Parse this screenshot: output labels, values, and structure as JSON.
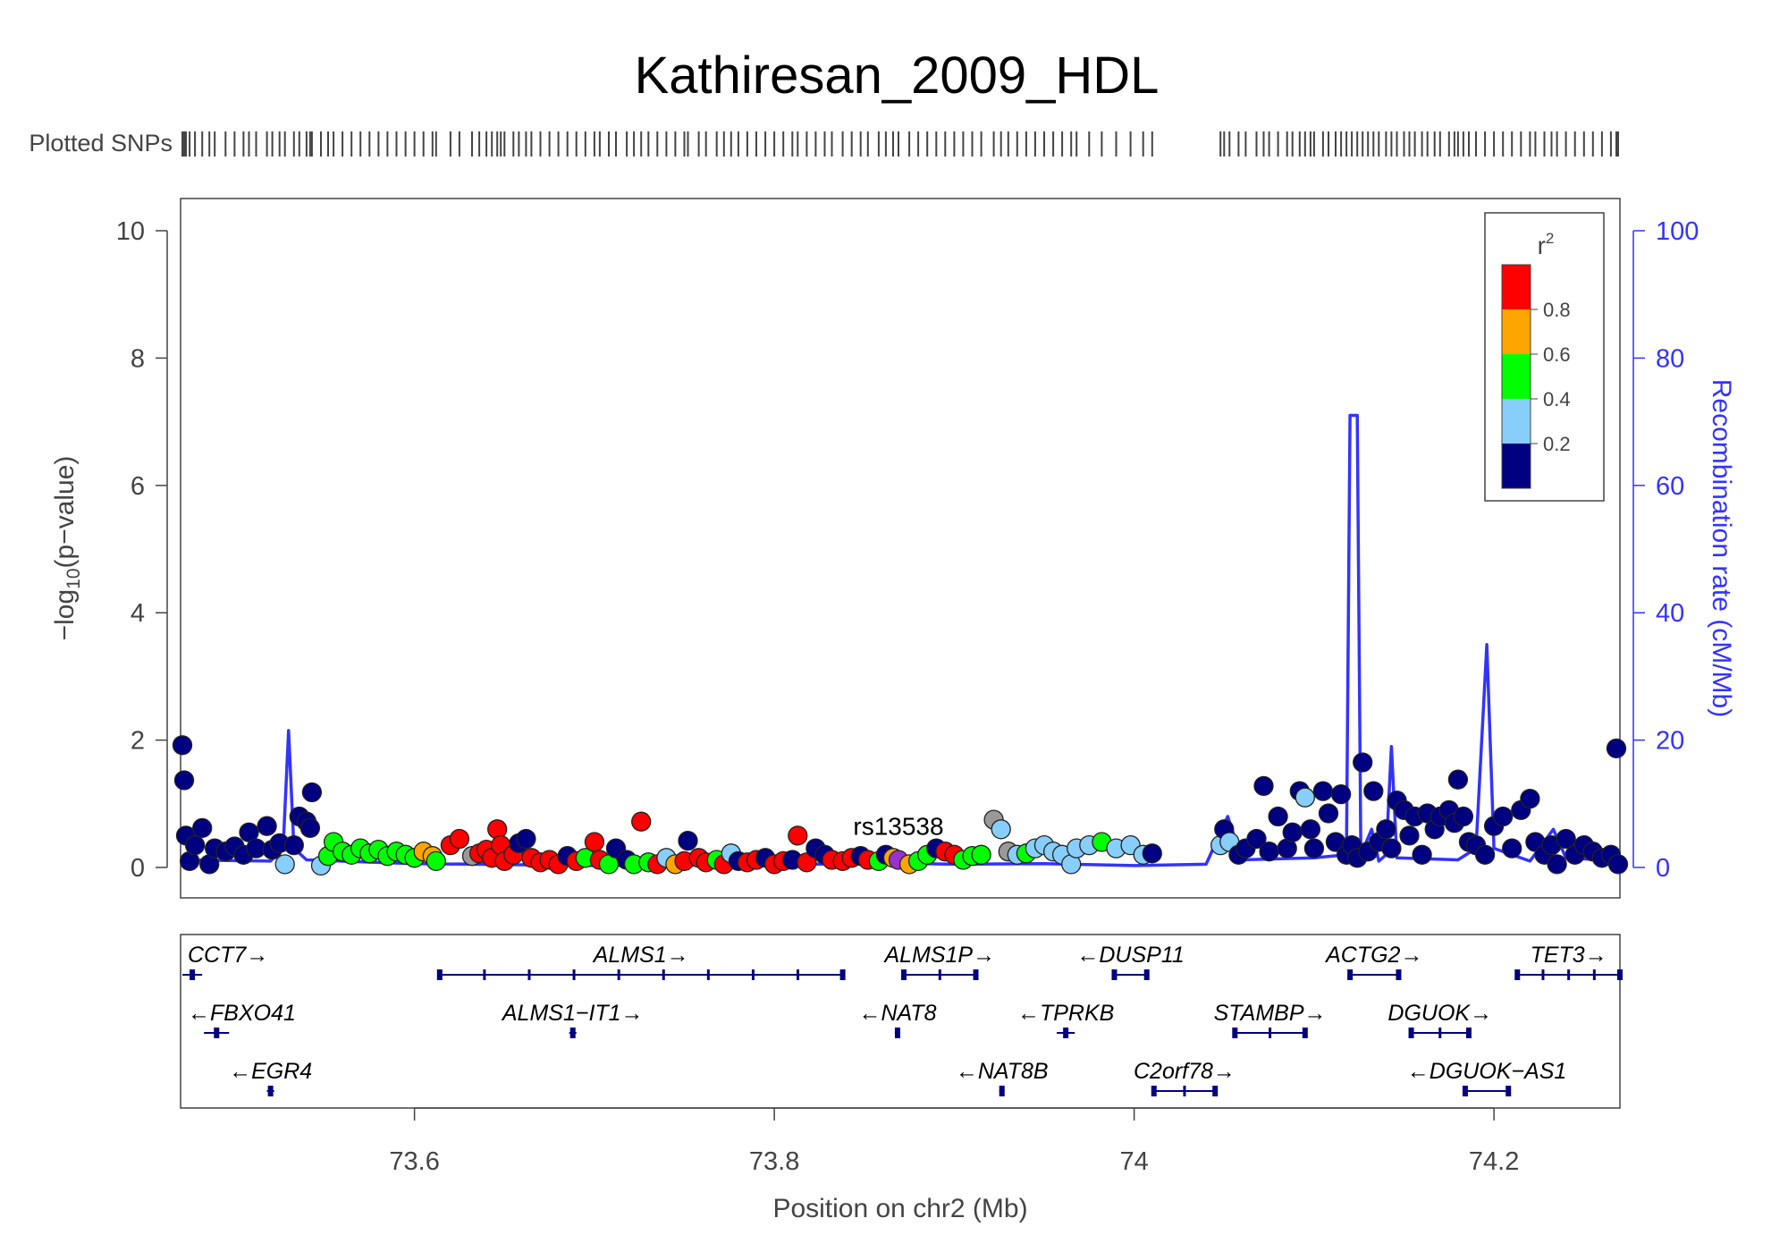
{
  "chart_data": {
    "type": "scatter",
    "title": "Kathiresan_2009_HDL",
    "xlabel": "Position on chr2 (Mb)",
    "ylabel": "−log10(p−value)",
    "ylabel_parts": {
      "prefix": "−log",
      "sub": "10",
      "suffix": "(p−value)"
    },
    "y2label": "Recombination rate (cM/Mb)",
    "xlim": [
      73.47,
      74.27
    ],
    "ylim": [
      0,
      10
    ],
    "y2lim": [
      0,
      100
    ],
    "x_ticks": [
      73.6,
      73.8,
      74,
      74.2
    ],
    "x_tick_labels": [
      "73.6",
      "73.8",
      "74",
      "74.2"
    ],
    "y_ticks": [
      0,
      2,
      4,
      6,
      8,
      10
    ],
    "y_tick_labels": [
      "0",
      "2",
      "4",
      "6",
      "8",
      "10"
    ],
    "y2_ticks": [
      0,
      20,
      40,
      60,
      80,
      100
    ],
    "y2_tick_labels": [
      "0",
      "20",
      "40",
      "60",
      "80",
      "100"
    ],
    "plotted_snps_label": "Plotted SNPs",
    "lead_snp": {
      "label": "rs13538",
      "x": 73.869,
      "y": 0.12
    },
    "legend": {
      "title": "r",
      "title_sup": "2",
      "placement": "top-right",
      "tick_labels": [
        "0.8",
        "0.6",
        "0.4",
        "0.2"
      ],
      "colors": [
        "#ff0000",
        "#ffa500",
        "#00ff00",
        "#87cefa",
        "#000080"
      ]
    },
    "colors": {
      "navy": "#000080",
      "lightblue": "#87cefa",
      "green": "#00ff00",
      "orange": "#ffa500",
      "red": "#ff0000",
      "gray": "#999999",
      "purple": "#9932cc",
      "recombination": "#3333ff"
    },
    "recombination_rate": [
      [
        73.47,
        1.2
      ],
      [
        73.52,
        1.0
      ],
      [
        73.527,
        3
      ],
      [
        73.53,
        21.5
      ],
      [
        73.533,
        3
      ],
      [
        73.54,
        1.2
      ],
      [
        73.6,
        0.6
      ],
      [
        73.7,
        0.3
      ],
      [
        73.8,
        0.4
      ],
      [
        73.86,
        0.7
      ],
      [
        73.9,
        0.5
      ],
      [
        73.95,
        0.6
      ],
      [
        74.0,
        0.3
      ],
      [
        74.04,
        0.5
      ],
      [
        74.052,
        8
      ],
      [
        74.06,
        1.2
      ],
      [
        74.1,
        1.5
      ],
      [
        74.118,
        2
      ],
      [
        74.12,
        71
      ],
      [
        74.124,
        71
      ],
      [
        74.126,
        2
      ],
      [
        74.132,
        6
      ],
      [
        74.136,
        1
      ],
      [
        74.14,
        2
      ],
      [
        74.143,
        19
      ],
      [
        74.146,
        1.5
      ],
      [
        74.18,
        1.2
      ],
      [
        74.19,
        3
      ],
      [
        74.196,
        35
      ],
      [
        74.2,
        3
      ],
      [
        74.22,
        1
      ],
      [
        74.233,
        6
      ],
      [
        74.24,
        1.5
      ],
      [
        74.27,
        1.0
      ]
    ],
    "snps": [
      {
        "x": 73.471,
        "y": 1.92,
        "c": "navy"
      },
      {
        "x": 73.472,
        "y": 1.37,
        "c": "navy"
      },
      {
        "x": 73.473,
        "y": 0.5,
        "c": "navy"
      },
      {
        "x": 73.475,
        "y": 0.1,
        "c": "navy"
      },
      {
        "x": 73.478,
        "y": 0.35,
        "c": "navy"
      },
      {
        "x": 73.482,
        "y": 0.62,
        "c": "navy"
      },
      {
        "x": 73.486,
        "y": 0.05,
        "c": "navy"
      },
      {
        "x": 73.489,
        "y": 0.3,
        "c": "navy"
      },
      {
        "x": 73.495,
        "y": 0.25,
        "c": "navy"
      },
      {
        "x": 73.5,
        "y": 0.33,
        "c": "navy"
      },
      {
        "x": 73.505,
        "y": 0.2,
        "c": "navy"
      },
      {
        "x": 73.508,
        "y": 0.55,
        "c": "navy"
      },
      {
        "x": 73.512,
        "y": 0.3,
        "c": "navy"
      },
      {
        "x": 73.518,
        "y": 0.65,
        "c": "navy"
      },
      {
        "x": 73.521,
        "y": 0.28,
        "c": "navy"
      },
      {
        "x": 73.525,
        "y": 0.38,
        "c": "navy"
      },
      {
        "x": 73.528,
        "y": 0.05,
        "c": "lightblue"
      },
      {
        "x": 73.533,
        "y": 0.35,
        "c": "navy"
      },
      {
        "x": 73.536,
        "y": 0.8,
        "c": "navy"
      },
      {
        "x": 73.54,
        "y": 0.72,
        "c": "navy"
      },
      {
        "x": 73.542,
        "y": 0.62,
        "c": "navy"
      },
      {
        "x": 73.543,
        "y": 1.18,
        "c": "navy"
      },
      {
        "x": 73.548,
        "y": 0.03,
        "c": "lightblue"
      },
      {
        "x": 73.552,
        "y": 0.18,
        "c": "green"
      },
      {
        "x": 73.555,
        "y": 0.4,
        "c": "green"
      },
      {
        "x": 73.56,
        "y": 0.25,
        "c": "green"
      },
      {
        "x": 73.565,
        "y": 0.2,
        "c": "green"
      },
      {
        "x": 73.57,
        "y": 0.3,
        "c": "green"
      },
      {
        "x": 73.575,
        "y": 0.22,
        "c": "green"
      },
      {
        "x": 73.58,
        "y": 0.28,
        "c": "green"
      },
      {
        "x": 73.585,
        "y": 0.18,
        "c": "green"
      },
      {
        "x": 73.59,
        "y": 0.25,
        "c": "green"
      },
      {
        "x": 73.595,
        "y": 0.2,
        "c": "green"
      },
      {
        "x": 73.6,
        "y": 0.15,
        "c": "green"
      },
      {
        "x": 73.605,
        "y": 0.25,
        "c": "orange"
      },
      {
        "x": 73.61,
        "y": 0.18,
        "c": "orange"
      },
      {
        "x": 73.612,
        "y": 0.1,
        "c": "green"
      },
      {
        "x": 73.62,
        "y": 0.35,
        "c": "red"
      },
      {
        "x": 73.625,
        "y": 0.45,
        "c": "red"
      },
      {
        "x": 73.632,
        "y": 0.18,
        "c": "gray"
      },
      {
        "x": 73.636,
        "y": 0.22,
        "c": "red"
      },
      {
        "x": 73.64,
        "y": 0.28,
        "c": "red"
      },
      {
        "x": 73.643,
        "y": 0.15,
        "c": "red"
      },
      {
        "x": 73.646,
        "y": 0.6,
        "c": "red"
      },
      {
        "x": 73.648,
        "y": 0.35,
        "c": "red"
      },
      {
        "x": 73.65,
        "y": 0.1,
        "c": "red"
      },
      {
        "x": 73.655,
        "y": 0.2,
        "c": "red"
      },
      {
        "x": 73.658,
        "y": 0.38,
        "c": "navy"
      },
      {
        "x": 73.662,
        "y": 0.45,
        "c": "navy"
      },
      {
        "x": 73.665,
        "y": 0.15,
        "c": "red"
      },
      {
        "x": 73.67,
        "y": 0.08,
        "c": "red"
      },
      {
        "x": 73.675,
        "y": 0.12,
        "c": "red"
      },
      {
        "x": 73.68,
        "y": 0.05,
        "c": "red"
      },
      {
        "x": 73.685,
        "y": 0.18,
        "c": "navy"
      },
      {
        "x": 73.69,
        "y": 0.1,
        "c": "red"
      },
      {
        "x": 73.695,
        "y": 0.15,
        "c": "green"
      },
      {
        "x": 73.7,
        "y": 0.4,
        "c": "red"
      },
      {
        "x": 73.703,
        "y": 0.12,
        "c": "red"
      },
      {
        "x": 73.708,
        "y": 0.05,
        "c": "green"
      },
      {
        "x": 73.712,
        "y": 0.3,
        "c": "navy"
      },
      {
        "x": 73.718,
        "y": 0.12,
        "c": "navy"
      },
      {
        "x": 73.722,
        "y": 0.05,
        "c": "green"
      },
      {
        "x": 73.726,
        "y": 0.72,
        "c": "red"
      },
      {
        "x": 73.73,
        "y": 0.08,
        "c": "green"
      },
      {
        "x": 73.735,
        "y": 0.05,
        "c": "red"
      },
      {
        "x": 73.74,
        "y": 0.15,
        "c": "lightblue"
      },
      {
        "x": 73.745,
        "y": 0.05,
        "c": "orange"
      },
      {
        "x": 73.75,
        "y": 0.1,
        "c": "red"
      },
      {
        "x": 73.752,
        "y": 0.42,
        "c": "navy"
      },
      {
        "x": 73.758,
        "y": 0.15,
        "c": "red"
      },
      {
        "x": 73.762,
        "y": 0.08,
        "c": "red"
      },
      {
        "x": 73.768,
        "y": 0.12,
        "c": "green"
      },
      {
        "x": 73.772,
        "y": 0.05,
        "c": "red"
      },
      {
        "x": 73.776,
        "y": 0.22,
        "c": "lightblue"
      },
      {
        "x": 73.78,
        "y": 0.1,
        "c": "navy"
      },
      {
        "x": 73.785,
        "y": 0.08,
        "c": "red"
      },
      {
        "x": 73.79,
        "y": 0.12,
        "c": "red"
      },
      {
        "x": 73.795,
        "y": 0.15,
        "c": "navy"
      },
      {
        "x": 73.8,
        "y": 0.05,
        "c": "red"
      },
      {
        "x": 73.805,
        "y": 0.1,
        "c": "red"
      },
      {
        "x": 73.81,
        "y": 0.12,
        "c": "navy"
      },
      {
        "x": 73.813,
        "y": 0.5,
        "c": "red"
      },
      {
        "x": 73.818,
        "y": 0.08,
        "c": "red"
      },
      {
        "x": 73.823,
        "y": 0.3,
        "c": "navy"
      },
      {
        "x": 73.828,
        "y": 0.2,
        "c": "navy"
      },
      {
        "x": 73.832,
        "y": 0.12,
        "c": "red"
      },
      {
        "x": 73.838,
        "y": 0.1,
        "c": "red"
      },
      {
        "x": 73.843,
        "y": 0.15,
        "c": "red"
      },
      {
        "x": 73.848,
        "y": 0.18,
        "c": "navy"
      },
      {
        "x": 73.852,
        "y": 0.12,
        "c": "red"
      },
      {
        "x": 73.858,
        "y": 0.1,
        "c": "green"
      },
      {
        "x": 73.862,
        "y": 0.2,
        "c": "navy"
      },
      {
        "x": 73.866,
        "y": 0.15,
        "c": "orange"
      },
      {
        "x": 73.869,
        "y": 0.12,
        "c": "purple"
      },
      {
        "x": 73.875,
        "y": 0.05,
        "c": "orange"
      },
      {
        "x": 73.88,
        "y": 0.1,
        "c": "green"
      },
      {
        "x": 73.885,
        "y": 0.2,
        "c": "green"
      },
      {
        "x": 73.89,
        "y": 0.3,
        "c": "navy"
      },
      {
        "x": 73.895,
        "y": 0.25,
        "c": "red"
      },
      {
        "x": 73.9,
        "y": 0.2,
        "c": "red"
      },
      {
        "x": 73.905,
        "y": 0.12,
        "c": "green"
      },
      {
        "x": 73.91,
        "y": 0.18,
        "c": "green"
      },
      {
        "x": 73.915,
        "y": 0.2,
        "c": "green"
      },
      {
        "x": 73.922,
        "y": 0.75,
        "c": "gray"
      },
      {
        "x": 73.926,
        "y": 0.6,
        "c": "lightblue"
      },
      {
        "x": 73.93,
        "y": 0.25,
        "c": "gray"
      },
      {
        "x": 73.935,
        "y": 0.2,
        "c": "lightblue"
      },
      {
        "x": 73.94,
        "y": 0.22,
        "c": "green"
      },
      {
        "x": 73.945,
        "y": 0.3,
        "c": "lightblue"
      },
      {
        "x": 73.95,
        "y": 0.35,
        "c": "lightblue"
      },
      {
        "x": 73.955,
        "y": 0.25,
        "c": "lightblue"
      },
      {
        "x": 73.96,
        "y": 0.2,
        "c": "lightblue"
      },
      {
        "x": 73.965,
        "y": 0.05,
        "c": "lightblue"
      },
      {
        "x": 73.968,
        "y": 0.3,
        "c": "lightblue"
      },
      {
        "x": 73.975,
        "y": 0.35,
        "c": "lightblue"
      },
      {
        "x": 73.982,
        "y": 0.4,
        "c": "green"
      },
      {
        "x": 73.99,
        "y": 0.3,
        "c": "lightblue"
      },
      {
        "x": 73.998,
        "y": 0.35,
        "c": "lightblue"
      },
      {
        "x": 74.005,
        "y": 0.2,
        "c": "lightblue"
      },
      {
        "x": 74.01,
        "y": 0.22,
        "c": "navy"
      },
      {
        "x": 74.048,
        "y": 0.35,
        "c": "lightblue"
      },
      {
        "x": 74.05,
        "y": 0.6,
        "c": "navy"
      },
      {
        "x": 74.053,
        "y": 0.4,
        "c": "lightblue"
      },
      {
        "x": 74.058,
        "y": 0.2,
        "c": "navy"
      },
      {
        "x": 74.062,
        "y": 0.3,
        "c": "navy"
      },
      {
        "x": 74.068,
        "y": 0.45,
        "c": "navy"
      },
      {
        "x": 74.072,
        "y": 1.28,
        "c": "navy"
      },
      {
        "x": 74.075,
        "y": 0.25,
        "c": "navy"
      },
      {
        "x": 74.08,
        "y": 0.8,
        "c": "navy"
      },
      {
        "x": 74.085,
        "y": 0.3,
        "c": "navy"
      },
      {
        "x": 74.088,
        "y": 0.55,
        "c": "navy"
      },
      {
        "x": 74.092,
        "y": 1.2,
        "c": "navy"
      },
      {
        "x": 74.095,
        "y": 1.1,
        "c": "lightblue"
      },
      {
        "x": 74.098,
        "y": 0.6,
        "c": "navy"
      },
      {
        "x": 74.1,
        "y": 0.3,
        "c": "navy"
      },
      {
        "x": 74.105,
        "y": 1.2,
        "c": "navy"
      },
      {
        "x": 74.108,
        "y": 0.85,
        "c": "navy"
      },
      {
        "x": 74.112,
        "y": 0.4,
        "c": "navy"
      },
      {
        "x": 74.115,
        "y": 1.15,
        "c": "navy"
      },
      {
        "x": 74.118,
        "y": 0.2,
        "c": "navy"
      },
      {
        "x": 74.121,
        "y": 0.35,
        "c": "navy"
      },
      {
        "x": 74.124,
        "y": 0.15,
        "c": "navy"
      },
      {
        "x": 74.127,
        "y": 1.65,
        "c": "navy"
      },
      {
        "x": 74.13,
        "y": 0.25,
        "c": "navy"
      },
      {
        "x": 74.133,
        "y": 1.2,
        "c": "navy"
      },
      {
        "x": 74.136,
        "y": 0.4,
        "c": "navy"
      },
      {
        "x": 74.14,
        "y": 0.6,
        "c": "navy"
      },
      {
        "x": 74.143,
        "y": 0.3,
        "c": "navy"
      },
      {
        "x": 74.146,
        "y": 1.05,
        "c": "navy"
      },
      {
        "x": 74.15,
        "y": 0.9,
        "c": "navy"
      },
      {
        "x": 74.153,
        "y": 0.5,
        "c": "navy"
      },
      {
        "x": 74.156,
        "y": 0.8,
        "c": "navy"
      },
      {
        "x": 74.16,
        "y": 0.2,
        "c": "navy"
      },
      {
        "x": 74.163,
        "y": 0.85,
        "c": "navy"
      },
      {
        "x": 74.167,
        "y": 0.6,
        "c": "navy"
      },
      {
        "x": 74.17,
        "y": 0.8,
        "c": "navy"
      },
      {
        "x": 74.175,
        "y": 0.9,
        "c": "navy"
      },
      {
        "x": 74.178,
        "y": 0.7,
        "c": "navy"
      },
      {
        "x": 74.18,
        "y": 1.38,
        "c": "navy"
      },
      {
        "x": 74.183,
        "y": 0.8,
        "c": "navy"
      },
      {
        "x": 74.186,
        "y": 0.4,
        "c": "navy"
      },
      {
        "x": 74.19,
        "y": 0.35,
        "c": "navy"
      },
      {
        "x": 74.195,
        "y": 0.2,
        "c": "navy"
      },
      {
        "x": 74.2,
        "y": 0.65,
        "c": "navy"
      },
      {
        "x": 74.205,
        "y": 0.8,
        "c": "navy"
      },
      {
        "x": 74.21,
        "y": 0.3,
        "c": "navy"
      },
      {
        "x": 74.215,
        "y": 0.9,
        "c": "navy"
      },
      {
        "x": 74.22,
        "y": 1.08,
        "c": "navy"
      },
      {
        "x": 74.223,
        "y": 0.4,
        "c": "navy"
      },
      {
        "x": 74.228,
        "y": 0.2,
        "c": "navy"
      },
      {
        "x": 74.232,
        "y": 0.35,
        "c": "navy"
      },
      {
        "x": 74.235,
        "y": 0.05,
        "c": "navy"
      },
      {
        "x": 74.24,
        "y": 0.45,
        "c": "navy"
      },
      {
        "x": 74.245,
        "y": 0.2,
        "c": "navy"
      },
      {
        "x": 74.25,
        "y": 0.35,
        "c": "navy"
      },
      {
        "x": 74.255,
        "y": 0.25,
        "c": "navy"
      },
      {
        "x": 74.26,
        "y": 0.15,
        "c": "navy"
      },
      {
        "x": 74.265,
        "y": 0.2,
        "c": "navy"
      },
      {
        "x": 74.268,
        "y": 1.87,
        "c": "navy"
      },
      {
        "x": 74.269,
        "y": 0.05,
        "c": "navy"
      }
    ],
    "genes": [
      {
        "name": "CCT7",
        "strand": "+",
        "start": 73.471,
        "end": 73.482,
        "row": 0
      },
      {
        "name": "ALMS1",
        "strand": "+",
        "start": 73.614,
        "end": 73.838,
        "row": 0
      },
      {
        "name": "ALMS1P",
        "strand": "+",
        "start": 73.872,
        "end": 73.912,
        "row": 0
      },
      {
        "name": "DUSP11",
        "strand": "-",
        "start": 73.989,
        "end": 74.007,
        "row": 0
      },
      {
        "name": "ACTG2",
        "strand": "+",
        "start": 74.12,
        "end": 74.147,
        "row": 0
      },
      {
        "name": "TET3",
        "strand": "+",
        "start": 74.213,
        "end": 74.27,
        "row": 0
      },
      {
        "name": "FBXO41",
        "strand": "-",
        "start": 73.483,
        "end": 73.497,
        "row": 1
      },
      {
        "name": "ALMS1−IT1",
        "strand": "+",
        "start": 73.686,
        "end": 73.69,
        "row": 1
      },
      {
        "name": "NAT8",
        "strand": "-",
        "start": 73.867,
        "end": 73.87,
        "row": 1
      },
      {
        "name": "TPRKB",
        "strand": "-",
        "start": 73.957,
        "end": 73.967,
        "row": 1
      },
      {
        "name": "STAMBP",
        "strand": "+",
        "start": 74.056,
        "end": 74.095,
        "row": 1
      },
      {
        "name": "DGUOK",
        "strand": "+",
        "start": 74.154,
        "end": 74.186,
        "row": 1
      },
      {
        "name": "EGR4",
        "strand": "-",
        "start": 73.518,
        "end": 73.522,
        "row": 2
      },
      {
        "name": "NAT8B",
        "strand": "-",
        "start": 73.925,
        "end": 73.928,
        "row": 2
      },
      {
        "name": "C2orf78",
        "strand": "+",
        "start": 74.011,
        "end": 74.045,
        "row": 2
      },
      {
        "name": "DGUOK−AS1",
        "strand": "-",
        "start": 74.184,
        "end": 74.208,
        "row": 2
      }
    ]
  }
}
